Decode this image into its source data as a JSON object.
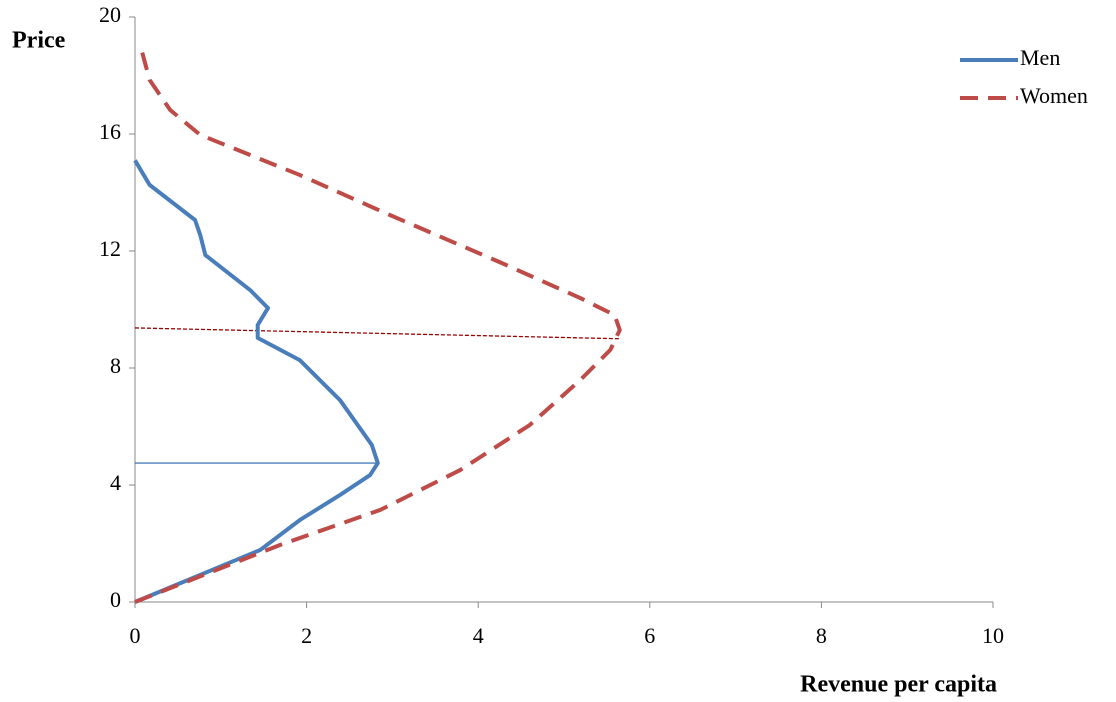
{
  "chart_data": {
    "type": "line",
    "x_label": "Revenue per capita",
    "y_label": "Price",
    "xlim": [
      0,
      10
    ],
    "xticks": [
      0,
      2,
      4,
      6,
      8,
      10
    ],
    "ylim": [
      0,
      20
    ],
    "yticks": [
      0,
      4,
      8,
      12,
      16,
      20
    ],
    "grid": false,
    "legend": "top-right",
    "series": [
      {
        "name": "Men",
        "color": "#4a7ebb",
        "dash": false,
        "x": [
          0,
          1.46,
          1.92,
          2.39,
          2.74,
          2.83,
          2.76,
          2.39,
          1.92,
          1.43,
          1.43,
          1.55,
          1.34,
          0.82,
          0.76,
          0.7,
          0.17,
          0
        ],
        "values": [
          0,
          1.78,
          2.8,
          3.66,
          4.34,
          4.75,
          5.37,
          6.9,
          8.27,
          9.03,
          9.47,
          10.05,
          10.67,
          11.86,
          12.55,
          13.06,
          14.26,
          15.1
        ]
      },
      {
        "name": "Women",
        "color": "#be4b48",
        "dash": true,
        "x": [
          0,
          1.69,
          2.86,
          3.79,
          4.6,
          5.19,
          5.54,
          5.65,
          5.59,
          5.19,
          4.25,
          2.97,
          1.92,
          0.76,
          0.41,
          0.17,
          0.06
        ],
        "values": [
          0,
          1.95,
          3.15,
          4.51,
          6.05,
          7.59,
          8.62,
          9.3,
          9.81,
          10.39,
          11.62,
          13.23,
          14.6,
          15.97,
          16.82,
          17.85,
          19.05
        ]
      }
    ],
    "reference_lines": [
      {
        "color": "#4a7ebb",
        "dash": false,
        "x": [
          0,
          2.83
        ],
        "values": [
          4.75,
          4.75
        ]
      },
      {
        "color": "#a00000",
        "dash": true,
        "x": [
          0,
          5.65
        ],
        "values": [
          9.37,
          9.0
        ]
      }
    ]
  }
}
